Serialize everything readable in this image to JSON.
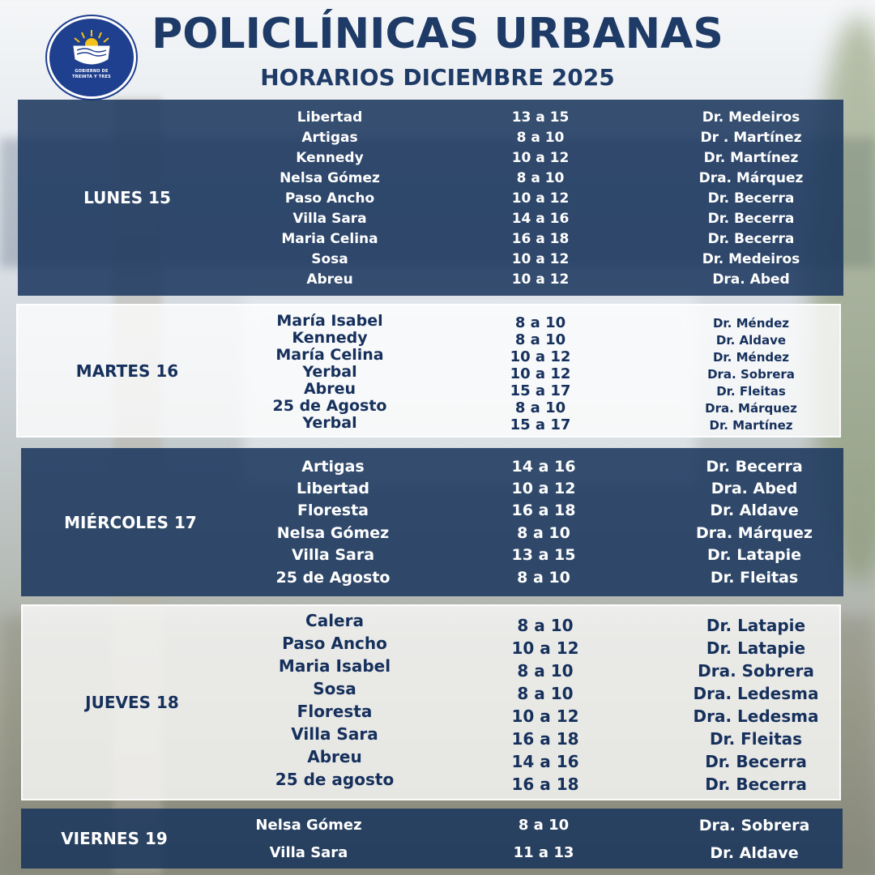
{
  "header": {
    "title": "POLICLÍNICAS URBANAS",
    "subtitle": "HORARIOS  DICIEMBRE 2025",
    "logo_text_line1": "GOBIERNO DE",
    "logo_text_line2": "TREINTA Y TRES"
  },
  "colors": {
    "dark_block": "#18345c",
    "title_blue": "#1e3a66",
    "logo_blue": "#1f3f8f",
    "sun_yellow": "#f3c21b"
  },
  "days": [
    {
      "label": "LUNES 15",
      "rows": [
        {
          "place": "Libertad",
          "time": "13 a 15",
          "doctor": "Dr. Medeiros"
        },
        {
          "place": "Artigas",
          "time": "8 a 10",
          "doctor": "Dr . Martínez"
        },
        {
          "place": "Kennedy",
          "time": "10 a 12",
          "doctor": "Dr. Martínez"
        },
        {
          "place": "Nelsa Gómez",
          "time": "8 a 10",
          "doctor": "Dra. Márquez"
        },
        {
          "place": "Paso Ancho",
          "time": "10 a 12",
          "doctor": "Dr.  Becerra"
        },
        {
          "place": "Villa Sara",
          "time": "14 a 16",
          "doctor": "Dr.  Becerra"
        },
        {
          "place": "Maria Celina",
          "time": "16 a 18",
          "doctor": "Dr. Becerra"
        },
        {
          "place": "Sosa",
          "time": "10 a 12",
          "doctor": "Dr. Medeiros"
        },
        {
          "place": "Abreu",
          "time": "10 a 12",
          "doctor": "Dra. Abed"
        }
      ]
    },
    {
      "label": "MARTES 16",
      "rows": [
        {
          "place": "María Isabel",
          "time": "8  a 10",
          "doctor": "Dr. Méndez"
        },
        {
          "place": "Kennedy",
          "time": "8  a 10",
          "doctor": "Dr. Aldave"
        },
        {
          "place": "María Celina",
          "time": "10  a 12",
          "doctor": "Dr. Méndez"
        },
        {
          "place": "Yerbal",
          "time": "10  a 12",
          "doctor": "Dra. Sobrera"
        },
        {
          "place": "Abreu",
          "time": "15  a 17",
          "doctor": "Dr. Fleitas"
        },
        {
          "place": "25 de Agosto",
          "time": "8  a 10",
          "doctor": "Dra. Márquez"
        },
        {
          "place": "Yerbal",
          "time": "15  a 17",
          "doctor": "Dr. Martínez"
        }
      ]
    },
    {
      "label": "MIÉRCOLES 17",
      "rows": [
        {
          "place": "Artigas",
          "time": "14 a 16",
          "doctor": "Dr. Becerra"
        },
        {
          "place": "Libertad",
          "time": "10 a 12",
          "doctor": "Dra. Abed"
        },
        {
          "place": "Floresta",
          "time": "16 a 18",
          "doctor": "Dr. Aldave"
        },
        {
          "place": "Nelsa Gómez",
          "time": "8 a 10",
          "doctor": "Dra.  Márquez"
        },
        {
          "place": "Villa Sara",
          "time": "13 a 15",
          "doctor": "Dr.  Latapie"
        },
        {
          "place": "25 de Agosto",
          "time": "8 a 10",
          "doctor": "Dr. Fleitas"
        }
      ]
    },
    {
      "label": "JUEVES 18",
      "rows": [
        {
          "place": "Calera",
          "time": "8  a  10",
          "doctor": "Dr.  Latapie"
        },
        {
          "place": "Paso Ancho",
          "time": "10  a  12",
          "doctor": "Dr. Latapie"
        },
        {
          "place": "Maria Isabel",
          "time": "8  a  10",
          "doctor": "Dra. Sobrera"
        },
        {
          "place": "Sosa",
          "time": "8  a  10",
          "doctor": "Dra.  Ledesma"
        },
        {
          "place": "Floresta",
          "time": "10  a  12",
          "doctor": "Dra. Ledesma"
        },
        {
          "place": "Villa Sara",
          "time": "16  a  18",
          "doctor": "Dr. Fleitas"
        },
        {
          "place": "Abreu",
          "time": "14  a  16",
          "doctor": "Dr. Becerra"
        },
        {
          "place": "25 de agosto",
          "time": "16  a  18",
          "doctor": "Dr. Becerra"
        }
      ]
    },
    {
      "label": "VIERNES 19",
      "rows": [
        {
          "place": "Nelsa Gómez",
          "time": "8 a 10",
          "doctor": "Dra. Sobrera"
        },
        {
          "place": "Villa Sara",
          "time": "11 a 13",
          "doctor": "Dr.  Aldave"
        }
      ]
    }
  ]
}
